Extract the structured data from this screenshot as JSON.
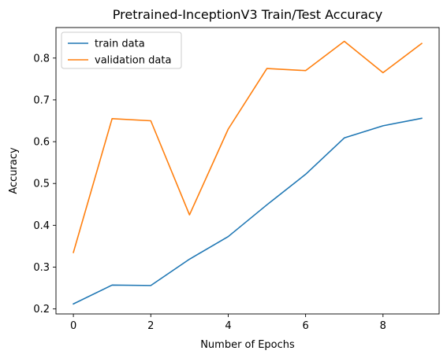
{
  "chart_data": {
    "type": "line",
    "title": "Pretrained-InceptionV3 Train/Test Accuracy",
    "xlabel": "Number of Epochs",
    "ylabel": "Accuracy",
    "x": [
      0,
      1,
      2,
      3,
      4,
      5,
      6,
      7,
      8,
      9
    ],
    "xlim": [
      -0.45,
      9.45
    ],
    "ylim": [
      0.188,
      0.873
    ],
    "xticks": [
      0,
      2,
      4,
      6,
      8
    ],
    "yticks": [
      0.2,
      0.3,
      0.4,
      0.5,
      0.6,
      0.7,
      0.8
    ],
    "grid": false,
    "legend_position": "upper left",
    "series": [
      {
        "name": "train data",
        "color": "#1f77b4",
        "values": [
          0.212,
          0.257,
          0.256,
          0.319,
          0.373,
          0.449,
          0.522,
          0.609,
          0.638,
          0.656
        ]
      },
      {
        "name": "validation data",
        "color": "#ff7f0e",
        "values": [
          0.335,
          0.655,
          0.65,
          0.425,
          0.63,
          0.775,
          0.77,
          0.84,
          0.765,
          0.835
        ]
      }
    ]
  }
}
